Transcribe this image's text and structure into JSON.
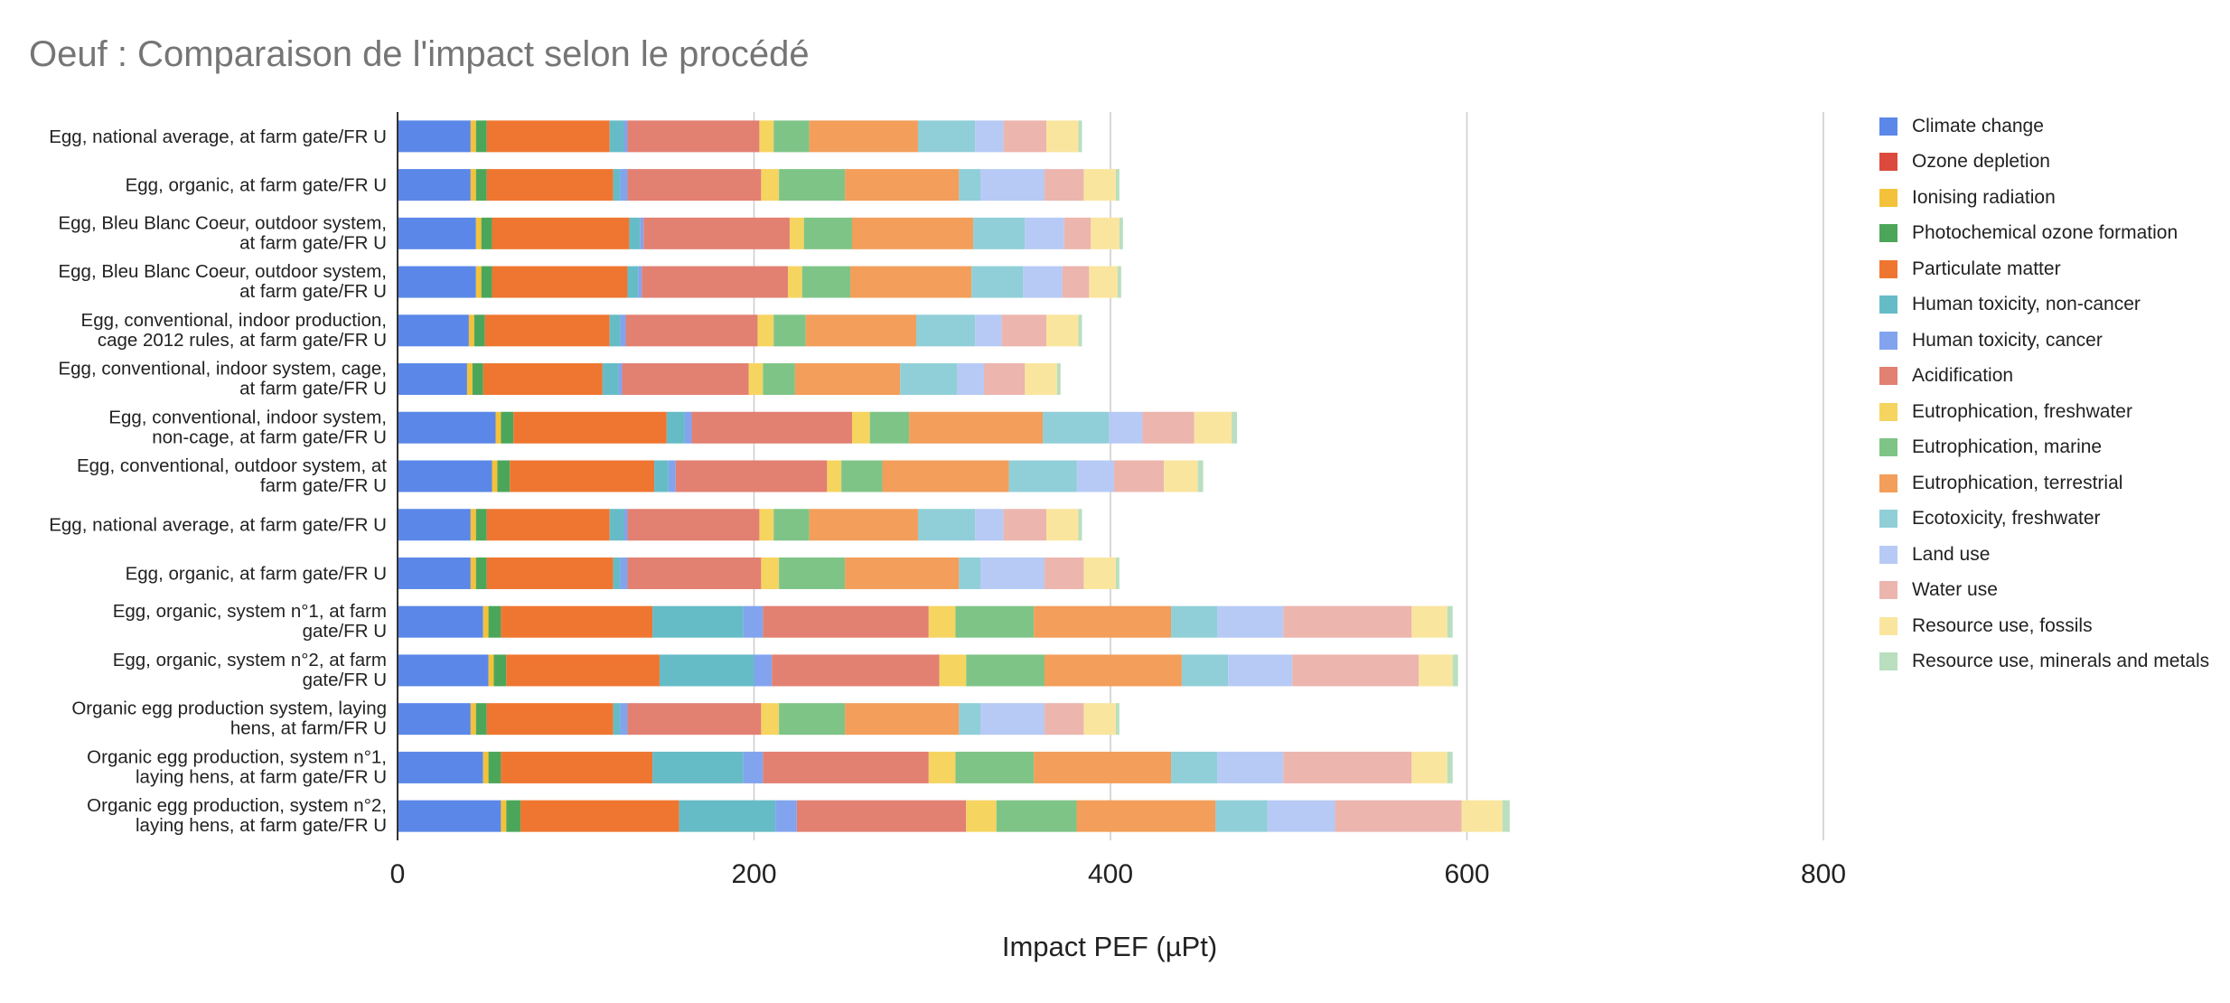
{
  "chart_data": {
    "type": "bar",
    "orientation": "horizontal",
    "stacked": true,
    "title": "Oeuf : Comparaison de l'impact selon le procédé",
    "xlabel": "Impact PEF (µPt)",
    "ylabel": "",
    "xlim": [
      0,
      800
    ],
    "xticks": [
      0,
      200,
      400,
      600,
      800
    ],
    "grid": true,
    "legend_position": "right",
    "categories": [
      "Egg, national average, at farm gate/FR U",
      "Egg, organic, at farm gate/FR U",
      "Egg, Bleu Blanc Coeur, outdoor system, at farm gate/FR U",
      "Egg, Bleu Blanc Coeur, outdoor system, at farm gate/FR U",
      "Egg, conventional, indoor production, cage 2012 rules, at farm gate/FR U",
      "Egg, conventional, indoor system, cage, at farm gate/FR U",
      "Egg, conventional, indoor system, non-cage, at farm gate/FR U",
      "Egg, conventional, outdoor system, at farm gate/FR U",
      "Egg, national average, at farm gate/FR U",
      "Egg, organic, at farm gate/FR U",
      "Egg, organic, system n°1, at farm gate/FR U",
      "Egg, organic, system n°2, at farm gate/FR U",
      "Organic egg production system, laying hens, at farm/FR U",
      "Organic egg production, system n°1, laying hens, at farm gate/FR U",
      "Organic egg production, system n°2, laying hens, at farm gate/FR U"
    ],
    "category_lines": [
      [
        "Egg, national average, at farm gate/FR U"
      ],
      [
        "Egg, organic, at farm gate/FR U"
      ],
      [
        "Egg, Bleu Blanc Coeur, outdoor system,",
        "at farm gate/FR U"
      ],
      [
        "Egg, Bleu Blanc Coeur, outdoor system,",
        "at farm gate/FR U"
      ],
      [
        "Egg, conventional, indoor production,",
        "cage 2012 rules, at farm gate/FR U"
      ],
      [
        "Egg, conventional, indoor system, cage,",
        "at farm gate/FR U"
      ],
      [
        "Egg, conventional, indoor system,",
        "non-cage, at farm gate/FR U"
      ],
      [
        "Egg, conventional, outdoor system, at",
        "farm gate/FR U"
      ],
      [
        "Egg, national average, at farm gate/FR U"
      ],
      [
        "Egg, organic, at farm gate/FR U"
      ],
      [
        "Egg, organic, system n°1, at farm",
        "gate/FR U"
      ],
      [
        "Egg, organic, system n°2, at farm",
        "gate/FR U"
      ],
      [
        "Organic egg production system, laying",
        "hens, at farm/FR U"
      ],
      [
        "Organic egg production, system n°1,",
        "laying hens, at farm gate/FR U"
      ],
      [
        "Organic egg production, system n°2,",
        "laying hens, at farm gate/FR U"
      ]
    ],
    "series": [
      {
        "name": "Climate change",
        "color": "#5b87e8",
        "values": [
          41,
          41,
          44,
          44,
          40,
          39,
          55,
          53,
          41,
          41,
          48,
          51,
          41,
          48,
          58
        ]
      },
      {
        "name": "Ozone depletion",
        "color": "#db4a3d",
        "values": [
          0,
          0,
          0,
          0,
          0,
          0,
          0,
          0,
          0,
          0,
          0,
          0,
          0,
          0,
          0
        ]
      },
      {
        "name": "Ionising radiation",
        "color": "#f4c13a",
        "values": [
          3,
          3,
          3,
          3,
          3,
          3,
          3,
          3,
          3,
          3,
          3,
          3,
          3,
          3,
          3
        ]
      },
      {
        "name": "Photochemical ozone formation",
        "color": "#4ca65a",
        "values": [
          6,
          6,
          6,
          6,
          6,
          6,
          7,
          7,
          6,
          6,
          7,
          7,
          6,
          7,
          8
        ]
      },
      {
        "name": "Particulate matter",
        "color": "#ef7630",
        "values": [
          69,
          71,
          77,
          76,
          70,
          67,
          86,
          81,
          69,
          71,
          85,
          86,
          71,
          85,
          89
        ]
      },
      {
        "name": "Human toxicity, non-cancer",
        "color": "#66bcc6",
        "values": [
          8,
          4,
          6,
          6,
          6,
          9,
          10,
          8,
          8,
          4,
          51,
          53,
          4,
          51,
          54
        ]
      },
      {
        "name": "Human toxicity, cancer",
        "color": "#82a4ee",
        "values": [
          2,
          4,
          2,
          2,
          3,
          2,
          4,
          4,
          2,
          4,
          11,
          10,
          4,
          11,
          12
        ]
      },
      {
        "name": "Acidification",
        "color": "#e28072",
        "values": [
          74,
          75,
          82,
          82,
          74,
          71,
          90,
          85,
          74,
          75,
          93,
          94,
          75,
          93,
          95
        ]
      },
      {
        "name": "Eutrophication, freshwater",
        "color": "#f6d460",
        "values": [
          8,
          10,
          8,
          8,
          9,
          8,
          10,
          8,
          8,
          10,
          15,
          15,
          10,
          15,
          17
        ]
      },
      {
        "name": "Eutrophication, marine",
        "color": "#7fc487",
        "values": [
          20,
          37,
          27,
          27,
          18,
          18,
          22,
          23,
          20,
          37,
          44,
          44,
          37,
          44,
          45
        ]
      },
      {
        "name": "Eutrophication, terrestrial",
        "color": "#f39e5a",
        "values": [
          61,
          64,
          68,
          68,
          62,
          59,
          75,
          71,
          61,
          64,
          77,
          77,
          64,
          77,
          78
        ]
      },
      {
        "name": "Ecotoxicity, freshwater",
        "color": "#90cfd8",
        "values": [
          32,
          12,
          29,
          29,
          33,
          32,
          37,
          38,
          32,
          12,
          26,
          26,
          12,
          26,
          29
        ]
      },
      {
        "name": "Land use",
        "color": "#b7caf5",
        "values": [
          16,
          36,
          22,
          22,
          15,
          15,
          19,
          21,
          16,
          36,
          37,
          36,
          36,
          37,
          38
        ]
      },
      {
        "name": "Water use",
        "color": "#ecb5ae",
        "values": [
          24,
          22,
          15,
          15,
          25,
          23,
          29,
          28,
          24,
          22,
          72,
          71,
          22,
          72,
          71
        ]
      },
      {
        "name": "Resource use, fossils",
        "color": "#fae59e",
        "values": [
          18,
          18,
          16,
          16,
          18,
          18,
          21,
          19,
          18,
          18,
          20,
          19,
          18,
          20,
          23
        ]
      },
      {
        "name": "Resource use, minerals and metals",
        "color": "#b9dfbf",
        "values": [
          2,
          2,
          2,
          2,
          2,
          2,
          3,
          3,
          2,
          2,
          3,
          3,
          2,
          3,
          4
        ]
      }
    ]
  }
}
